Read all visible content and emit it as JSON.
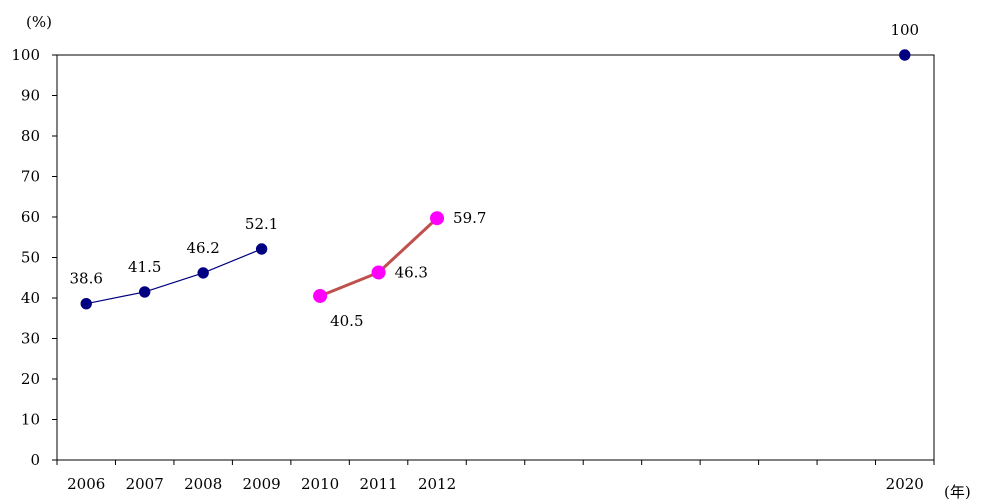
{
  "chart_data": {
    "type": "line",
    "ylabel": "(%)",
    "xlabel": "(年)",
    "ylim": [
      0,
      100
    ],
    "yticks": [
      0,
      10,
      20,
      30,
      40,
      50,
      60,
      70,
      80,
      90,
      100
    ],
    "categories": [
      "2006",
      "2007",
      "2008",
      "2009",
      "2010",
      "2011",
      "2012",
      "",
      "",
      "",
      "",
      "",
      "",
      "",
      "2020"
    ],
    "grid": false,
    "series": [
      {
        "points": [
          {
            "x": "2006",
            "y": 38.6
          },
          {
            "x": "2007",
            "y": 41.5
          },
          {
            "x": "2008",
            "y": 46.2
          },
          {
            "x": "2009",
            "y": 52.1
          }
        ],
        "line_color": "#000080",
        "marker_color": "#000080"
      },
      {
        "points": [
          {
            "x": "2010",
            "y": 40.5
          },
          {
            "x": "2011",
            "y": 46.3
          },
          {
            "x": "2012",
            "y": 59.7
          }
        ],
        "line_color": "#c0504d",
        "marker_color": "#ff00ff"
      },
      {
        "points": [
          {
            "x": "2020",
            "y": 100
          }
        ],
        "line_color": "#000080",
        "marker_color": "#000080"
      }
    ],
    "data_labels": [
      {
        "text": "38.6",
        "x": "2006",
        "y": 38.6,
        "position": "above"
      },
      {
        "text": "41.5",
        "x": "2007",
        "y": 41.5,
        "position": "above"
      },
      {
        "text": "46.2",
        "x": "2008",
        "y": 46.2,
        "position": "above"
      },
      {
        "text": "52.1",
        "x": "2009",
        "y": 52.1,
        "position": "above"
      },
      {
        "text": "40.5",
        "x": "2010",
        "y": 40.5,
        "position": "below-right"
      },
      {
        "text": "46.3",
        "x": "2011",
        "y": 46.3,
        "position": "right"
      },
      {
        "text": "59.7",
        "x": "2012",
        "y": 59.7,
        "position": "right"
      },
      {
        "text": "100",
        "x": "2020",
        "y": 100,
        "position": "above"
      }
    ]
  }
}
